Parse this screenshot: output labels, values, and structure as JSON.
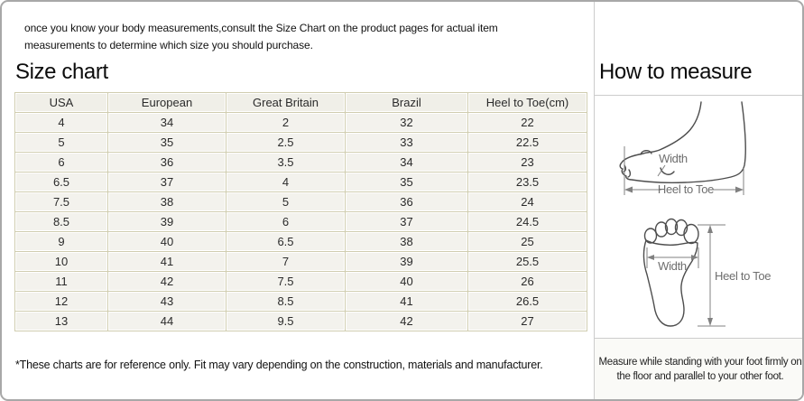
{
  "intro_note": "once you know your body measurements,consult the Size Chart on the product pages for actual item measurements to determine which size you should purchase.",
  "size_chart": {
    "title": "Size chart",
    "table": {
      "headers": [
        "USA",
        "European",
        "Great Britain",
        "Brazil",
        "Heel to Toe(cm)"
      ],
      "rows": [
        [
          "4",
          "34",
          "2",
          "32",
          "22"
        ],
        [
          "5",
          "35",
          "2.5",
          "33",
          "22.5"
        ],
        [
          "6",
          "36",
          "3.5",
          "34",
          "23"
        ],
        [
          "6.5",
          "37",
          "4",
          "35",
          "23.5"
        ],
        [
          "7.5",
          "38",
          "5",
          "36",
          "24"
        ],
        [
          "8.5",
          "39",
          "6",
          "37",
          "24.5"
        ],
        [
          "9",
          "40",
          "6.5",
          "38",
          "25"
        ],
        [
          "10",
          "41",
          "7",
          "39",
          "25.5"
        ],
        [
          "11",
          "42",
          "7.5",
          "40",
          "26"
        ],
        [
          "12",
          "43",
          "8.5",
          "41",
          "26.5"
        ],
        [
          "13",
          "44",
          "9.5",
          "42",
          "27"
        ]
      ]
    },
    "footnote": "*These charts are for reference only. Fit may vary depending on the construction, materials and manufacturer."
  },
  "how_to_measure": {
    "title": "How to measure",
    "side_view_diagram": {
      "width_label": "Width",
      "length_label": "Heel to Toe"
    },
    "footprint_diagram": {
      "width_label": "Width",
      "length_label": "Heel to Toe"
    },
    "instruction": "Measure while standing with your foot firmly on the floor and parallel to your other foot."
  },
  "colors": {
    "page_border": "#a8a8a8",
    "panel_divider": "#cccccc",
    "table_border": "#d0cdb0",
    "table_cell_bg": "#f3f2ed",
    "table_header_bg": "#f0efe8",
    "sketch_stroke": "#4d4d4d",
    "measure_line": "#808080",
    "label_text": "#6e6e6e",
    "footer_bg": "#fafaf7"
  }
}
